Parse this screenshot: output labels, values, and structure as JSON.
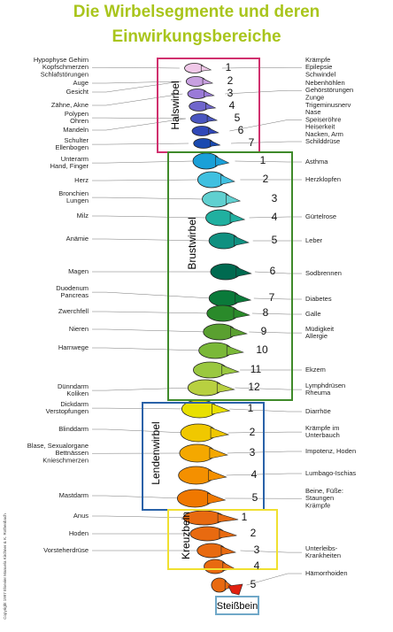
{
  "title": [
    "Die Wirbelsegmente und deren",
    "Einwirkungsbereiche"
  ],
  "regions": [
    {
      "name": "Halswirbel",
      "numbers": [
        "1",
        "2",
        "3",
        "4",
        "5",
        "6",
        "7"
      ]
    },
    {
      "name": "Brustwirbel",
      "numbers": [
        "1",
        "2",
        "3",
        "4",
        "5",
        "6",
        "7",
        "8",
        "9",
        "10",
        "11",
        "12"
      ]
    },
    {
      "name": "Lendenwirbel",
      "numbers": [
        "1",
        "2",
        "3",
        "4",
        "5"
      ]
    },
    {
      "name": "Kreuzbein",
      "numbers": [
        "1",
        "2",
        "3",
        "4",
        "5"
      ]
    },
    {
      "name": "Steißbein",
      "numbers": []
    }
  ],
  "left_labels": [
    [
      "Hypophyse Gehirn",
      "Kopfschmerzen",
      "Schlafstörungen"
    ],
    [
      "Auge"
    ],
    [
      "Gesicht"
    ],
    [
      "Zähne, Akne"
    ],
    [
      "Polypen",
      "Ohren"
    ],
    [
      "Mandeln"
    ],
    [
      "Schulter",
      "Ellenbogen"
    ],
    [
      "Unterarm",
      "Hand, Finger"
    ],
    [
      "Herz"
    ],
    [
      "Bronchien",
      "Lungen"
    ],
    [
      "Milz"
    ],
    [
      "Anämie"
    ],
    [
      "Magen"
    ],
    [
      "Duodenum",
      "Pancreas"
    ],
    [
      "Zwerchfell"
    ],
    [
      "Nieren"
    ],
    [
      "Harnwege"
    ],
    [
      "Dünndarm",
      "Koliken"
    ],
    [
      "Dickdarm",
      "Verstopfungen"
    ],
    [
      "Blinddarm"
    ],
    [
      "Blase, Sexualorgane",
      "Bettnässen",
      "Knieschmerzen"
    ],
    [
      "Mastdarm"
    ],
    [
      "Anus"
    ],
    [
      "Hoden"
    ],
    [
      "Vorsteherdrüse"
    ]
  ],
  "right_labels": [
    [
      "Krämpfe",
      "Epilepsie",
      "Schwindel"
    ],
    [
      "Nebenhöhlen",
      "Gehörstörungen",
      "Zunge"
    ],
    [
      "Trigeminusnerv",
      "Nase",
      "Speiseröhre",
      "Heiserkeit",
      "Nacken, Arm"
    ],
    [
      "Schilddrüse"
    ],
    [
      "Asthma"
    ],
    [
      "Herzklopfen"
    ],
    [
      "Gürtelrose"
    ],
    [
      "Leber"
    ],
    [
      "Sodbrennen"
    ],
    [
      "Diabetes"
    ],
    [
      "Galle"
    ],
    [
      "Müdigkeit",
      "Allergie"
    ],
    [
      "Ekzem"
    ],
    [
      "Lymphdrüsen",
      "Rheuma"
    ],
    [
      "Diarrhöe"
    ],
    [
      "Krämpfe im",
      "Unterbauch"
    ],
    [
      "Impotenz, Hoden"
    ],
    [
      "Lumbago-Ischias"
    ],
    [
      "Beine, Füße:",
      "Staungen",
      "Krämpfe"
    ],
    [
      "Unterleibs-",
      "Krankheiten"
    ],
    [
      "Hämorrhoiden"
    ]
  ],
  "copyright": "Copyright 1997 Elsevier Manuela Kirchner & K. Rothenbach"
}
